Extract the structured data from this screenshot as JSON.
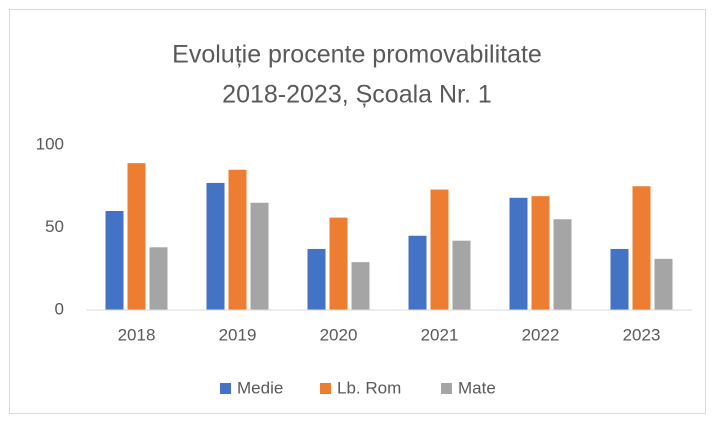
{
  "chart_data": {
    "type": "bar",
    "title": [
      "Evoluție procente promovabilitate",
      "2018-2023, Școala Nr. 1"
    ],
    "categories": [
      "2018",
      "2019",
      "2020",
      "2021",
      "2022",
      "2023"
    ],
    "series": [
      {
        "name": "Medie",
        "color": "#4472c4",
        "values": [
          60,
          77,
          37,
          45,
          68,
          37
        ]
      },
      {
        "name": "Lb. Rom",
        "color": "#ed7d31",
        "values": [
          89,
          85,
          56,
          73,
          69,
          75
        ]
      },
      {
        "name": "Mate",
        "color": "#a5a5a5",
        "values": [
          38,
          65,
          29,
          42,
          55,
          31
        ]
      }
    ],
    "ylim": [
      0,
      100
    ],
    "yticks": [
      0,
      50,
      100
    ],
    "grid": false,
    "legend": "bottom"
  }
}
